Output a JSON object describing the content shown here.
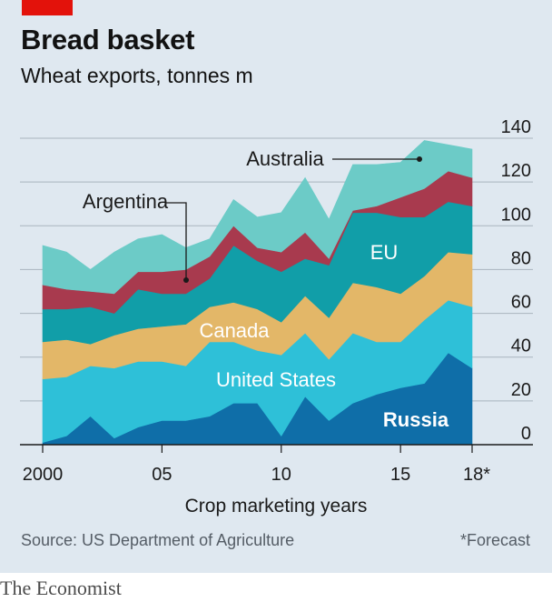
{
  "title": "Bread basket",
  "subtitle": "Wheat exports, tonnes m",
  "source": "Source: US Department of Agriculture",
  "note": "*Forecast",
  "brand": "The Economist",
  "colors": {
    "panel": "#dfe8f0",
    "red_tag": "#e3120b",
    "Russia": "#0f6ea8",
    "United States": "#2ec0d8",
    "Canada": "#e3b768",
    "EU": "#119ea8",
    "Argentina": "#a83a4e",
    "Australia": "#6ccbc7"
  },
  "chart_data": {
    "type": "area",
    "stacked": true,
    "xlabel": "Crop marketing years",
    "ylabel": "",
    "ylim": [
      0,
      140
    ],
    "yticks": [
      0,
      20,
      40,
      60,
      80,
      100,
      120,
      140
    ],
    "ytick_labels": [
      "0",
      "20",
      "40",
      "60",
      "80",
      "100",
      "120",
      "140"
    ],
    "xtick_labels": [
      "2000",
      "05",
      "10",
      "15",
      "18*"
    ],
    "x": [
      2000,
      2001,
      2002,
      2003,
      2004,
      2005,
      2006,
      2007,
      2008,
      2009,
      2010,
      2011,
      2012,
      2013,
      2014,
      2015,
      2016,
      2017,
      2018
    ],
    "grid": true,
    "y_axis_position": "right",
    "series": [
      {
        "name": "Russia",
        "values": [
          1,
          4,
          13,
          3,
          8,
          11,
          11,
          13,
          19,
          19,
          4,
          22,
          11,
          19,
          23,
          26,
          28,
          42,
          35
        ]
      },
      {
        "name": "United States",
        "values": [
          29,
          27,
          23,
          32,
          30,
          27,
          25,
          34,
          28,
          24,
          37,
          29,
          28,
          32,
          24,
          21,
          29,
          24,
          28
        ]
      },
      {
        "name": "Canada",
        "values": [
          17,
          17,
          10,
          15,
          15,
          16,
          19,
          16,
          18,
          19,
          15,
          17,
          19,
          23,
          25,
          22,
          20,
          22,
          24
        ]
      },
      {
        "name": "EU",
        "values": [
          15,
          14,
          17,
          10,
          18,
          15,
          14,
          13,
          26,
          22,
          23,
          17,
          24,
          32,
          34,
          35,
          27,
          23,
          22
        ]
      },
      {
        "name": "Argentina",
        "values": [
          11,
          9,
          7,
          9,
          8,
          10,
          11,
          10,
          9,
          6,
          9,
          12,
          3,
          1,
          3,
          9,
          13,
          14,
          13
        ]
      },
      {
        "name": "Australia",
        "values": [
          18,
          17,
          10,
          19,
          15,
          17,
          10,
          8,
          12,
          14,
          18,
          25,
          18,
          21,
          19,
          16,
          22,
          12,
          13
        ]
      }
    ],
    "labels": [
      "Russia",
      "United States",
      "Canada",
      "EU",
      "Argentina",
      "Australia"
    ]
  }
}
